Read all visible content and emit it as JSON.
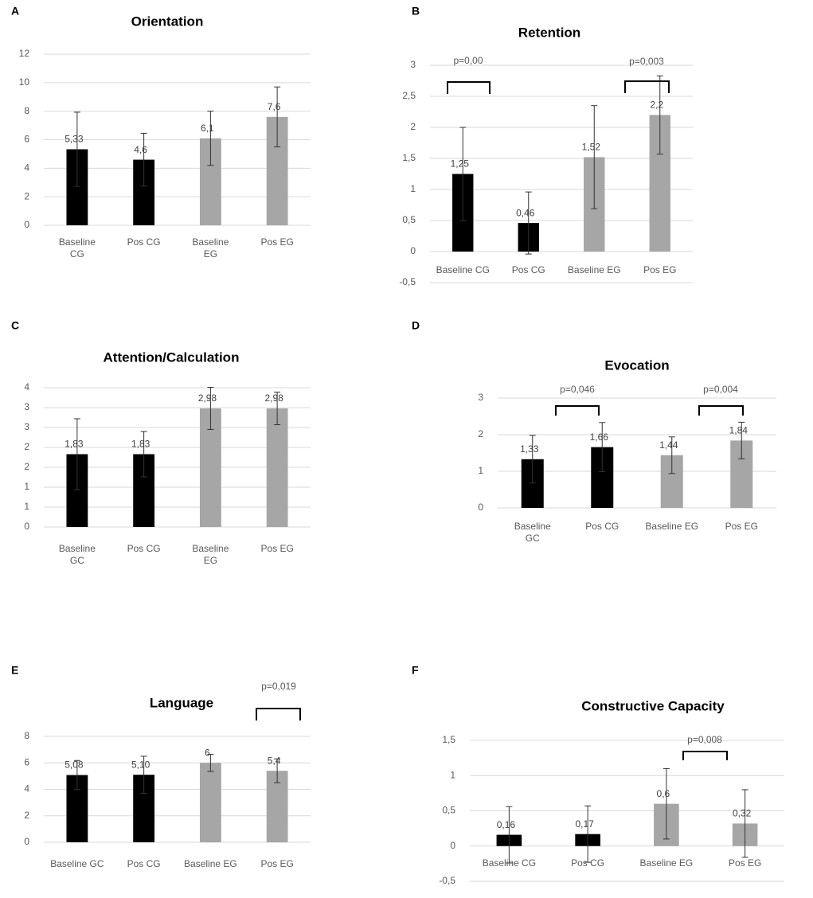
{
  "chart_data": [
    {
      "type": "bar",
      "panel": "A",
      "title": "Orientation",
      "categories": [
        "Baseline\nCG",
        "Pos CG",
        "Baseline\nEG",
        "Pos EG"
      ],
      "values": [
        5.33,
        4.6,
        6.1,
        7.6
      ],
      "value_labels": [
        "5,33",
        "4,6",
        "6,1",
        "7,6"
      ],
      "errors": [
        2.6,
        1.85,
        1.9,
        2.1
      ],
      "colors": [
        "#000000",
        "#000000",
        "#a6a6a6",
        "#a6a6a6"
      ],
      "ylim": [
        0,
        12
      ],
      "yticks": [
        0,
        2,
        4,
        6,
        8,
        10,
        12
      ],
      "grid": true,
      "annotations": []
    },
    {
      "type": "bar",
      "panel": "B",
      "title": "Retention",
      "categories": [
        "Baseline CG",
        "Pos CG",
        "Baseline EG",
        "Pos EG"
      ],
      "values": [
        1.25,
        0.46,
        1.52,
        2.2
      ],
      "value_labels": [
        "1,25",
        "0,46",
        "1,52",
        "2,2"
      ],
      "errors": [
        0.75,
        0.5,
        0.83,
        0.63
      ],
      "colors": [
        "#000000",
        "#000000",
        "#a6a6a6",
        "#a6a6a6"
      ],
      "ylim": [
        -0.5,
        3
      ],
      "yticks": [
        {
          "value": -0.5,
          "label": "-0,5"
        },
        0,
        {
          "value": 0.5,
          "label": "0,5"
        },
        1,
        {
          "value": 1.5,
          "label": "1,5"
        },
        2,
        {
          "value": 2.5,
          "label": "2,5"
        },
        3
      ],
      "grid": true,
      "annotations": [
        "p=0,00",
        "p=0,003"
      ]
    },
    {
      "type": "bar",
      "panel": "C",
      "title": "Attention/Calculation",
      "categories": [
        "Baseline\nGC",
        "Pos CG",
        "Baseline\nEG",
        "Pos EG"
      ],
      "values": [
        1.83,
        1.83,
        2.98,
        2.98
      ],
      "value_labels": [
        "1,83",
        "1,83",
        "2,98",
        "2,98"
      ],
      "errors": [
        0.89,
        0.57,
        0.53,
        0.41
      ],
      "colors": [
        "#000000",
        "#000000",
        "#a6a6a6",
        "#a6a6a6"
      ],
      "ylim": [
        0,
        3.5
      ],
      "yticks": [
        0,
        {
          "value": 0.5,
          "label": "1"
        },
        1,
        {
          "value": 1.5,
          "label": "2"
        },
        2,
        {
          "value": 2.5,
          "label": "3"
        },
        3,
        {
          "value": 3.5,
          "label": "4"
        }
      ],
      "grid": true,
      "annotations": []
    },
    {
      "type": "bar",
      "panel": "D",
      "title": "Evocation",
      "categories": [
        "Baseline\nGC",
        "Pos CG",
        "Baseline EG",
        "Pos EG"
      ],
      "values": [
        1.33,
        1.66,
        1.44,
        1.84
      ],
      "value_labels": [
        "1,33",
        "1,66",
        "1,44",
        "1,84"
      ],
      "errors": [
        0.65,
        0.67,
        0.5,
        0.5
      ],
      "colors": [
        "#000000",
        "#000000",
        "#a6a6a6",
        "#a6a6a6"
      ],
      "ylim": [
        0,
        3
      ],
      "yticks": [
        0,
        1,
        2,
        3
      ],
      "grid": true,
      "annotations": [
        "p=0,046",
        "p=0,004"
      ]
    },
    {
      "type": "bar",
      "panel": "E",
      "title": "Language",
      "categories": [
        "Baseline GC",
        "Pos CG",
        "Baseline EG",
        "Pos EG"
      ],
      "values": [
        5.08,
        5.1,
        6,
        5.4
      ],
      "value_labels": [
        "5,08",
        "5,10",
        "6",
        "5,4"
      ],
      "errors": [
        1.1,
        1.4,
        0.65,
        0.9
      ],
      "colors": [
        "#000000",
        "#000000",
        "#a6a6a6",
        "#a6a6a6"
      ],
      "ylim": [
        0,
        8
      ],
      "yticks": [
        0,
        2,
        4,
        6,
        8
      ],
      "grid": true,
      "annotations": [
        "p=0,019"
      ]
    },
    {
      "type": "bar",
      "panel": "F",
      "title": "Constructive Capacity",
      "categories": [
        "Baseline CG",
        "Pos CG",
        "Baseline EG",
        "Pos EG"
      ],
      "values": [
        0.16,
        0.17,
        0.6,
        0.32
      ],
      "value_labels": [
        "0,16",
        "0,17",
        "0,6",
        "0,32"
      ],
      "errors": [
        0.4,
        0.4,
        0.5,
        0.48
      ],
      "colors": [
        "#000000",
        "#000000",
        "#a6a6a6",
        "#a6a6a6"
      ],
      "ylim": [
        -0.5,
        1.5
      ],
      "yticks": [
        {
          "value": -0.5,
          "label": "-0,5"
        },
        0,
        {
          "value": 0.5,
          "label": "0,5"
        },
        1,
        {
          "value": 1.5,
          "label": "1,5"
        }
      ],
      "grid": true,
      "annotations": [
        "p=0,008"
      ]
    }
  ]
}
